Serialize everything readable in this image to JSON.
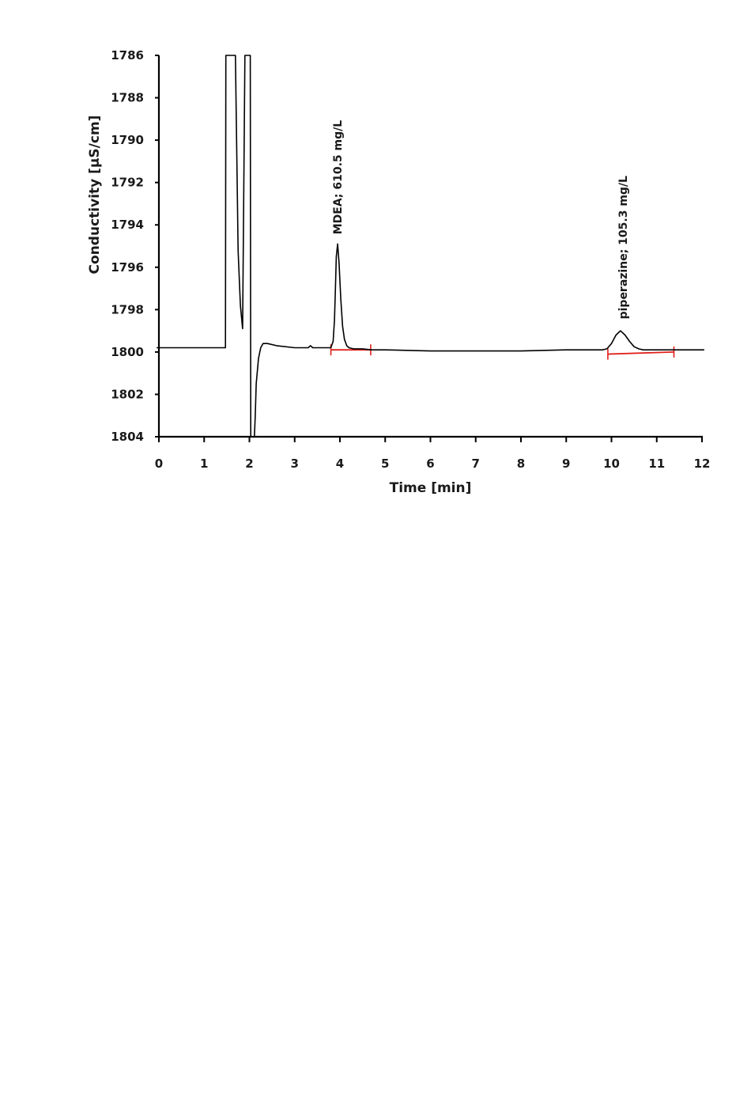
{
  "chart_data": {
    "type": "line",
    "title": "",
    "xlabel": "Time [min]",
    "ylabel": "Conductivity [µS/cm]",
    "xlim": [
      0,
      12
    ],
    "ylim": [
      1786,
      1804
    ],
    "y_inverted": true,
    "x_ticks": [
      0,
      1,
      2,
      3,
      4,
      5,
      6,
      7,
      8,
      9,
      10,
      11,
      12
    ],
    "y_ticks": [
      1786,
      1788,
      1790,
      1792,
      1794,
      1796,
      1798,
      1800,
      1802,
      1804
    ],
    "x_tick_labels": [
      "0",
      "1",
      "2",
      "3",
      "4",
      "5",
      "6",
      "7",
      "8",
      "9",
      "10",
      "11",
      "12"
    ],
    "y_tick_labels": [
      "1786",
      "1788",
      "1790",
      "1792",
      "1794",
      "1796",
      "1798",
      "1800",
      "1802",
      "1804"
    ],
    "grid": false,
    "colors": {
      "trace": "#000000",
      "baseline": "#e0201b",
      "axis": "#000000"
    },
    "series": [
      {
        "x": [
          -0.05,
          0.5,
          1.0,
          1.47,
          1.48,
          1.68,
          1.69,
          1.75,
          1.8,
          1.85,
          1.9,
          1.95,
          2.0,
          2.02,
          2.03,
          2.05,
          2.07,
          2.09,
          2.11,
          2.13,
          2.15,
          2.2,
          2.25,
          2.3,
          2.4,
          2.6,
          3.0,
          3.3,
          3.35,
          3.4,
          3.5,
          3.8,
          3.85,
          3.88,
          3.9,
          3.92,
          3.95,
          3.98,
          4.02,
          4.06,
          4.1,
          4.15,
          4.2,
          4.3,
          4.5,
          4.7,
          5.0,
          6.0,
          7.0,
          8.0,
          9.0,
          9.8,
          9.9,
          10.0,
          10.1,
          10.2,
          10.3,
          10.4,
          10.5,
          10.6,
          10.7,
          10.8,
          11.0,
          11.5,
          12.05
        ],
        "y": [
          1799.8,
          1799.8,
          1799.8,
          1799.8,
          1786,
          1786,
          1786,
          1795.2,
          1797.8,
          1798.9,
          1786,
          1786,
          1786,
          1786,
          1804,
          1804,
          1804,
          1804,
          1804,
          1803.0,
          1801.5,
          1800.3,
          1799.8,
          1799.6,
          1799.6,
          1799.7,
          1799.8,
          1799.8,
          1799.7,
          1799.8,
          1799.8,
          1799.8,
          1799.5,
          1798.5,
          1797.0,
          1795.5,
          1794.9,
          1795.8,
          1797.5,
          1798.8,
          1799.4,
          1799.7,
          1799.8,
          1799.85,
          1799.85,
          1799.9,
          1799.9,
          1799.95,
          1799.95,
          1799.95,
          1799.9,
          1799.9,
          1799.85,
          1799.6,
          1799.2,
          1799.0,
          1799.2,
          1799.5,
          1799.75,
          1799.85,
          1799.9,
          1799.9,
          1799.9,
          1799.9,
          1799.9
        ]
      }
    ],
    "peak_baselines": [
      {
        "x": [
          3.8,
          4.68
        ],
        "y": [
          1799.9,
          1799.9
        ]
      },
      {
        "x": [
          9.92,
          11.38
        ],
        "y": [
          1800.1,
          1800.0
        ]
      }
    ],
    "annotations": [
      {
        "text": "MDEA; 610.5 mg/L",
        "x": 3.95,
        "y": 1794.6
      },
      {
        "text": "piperazine; 105.3 mg/L",
        "x": 10.25,
        "y": 1798.6
      }
    ]
  }
}
